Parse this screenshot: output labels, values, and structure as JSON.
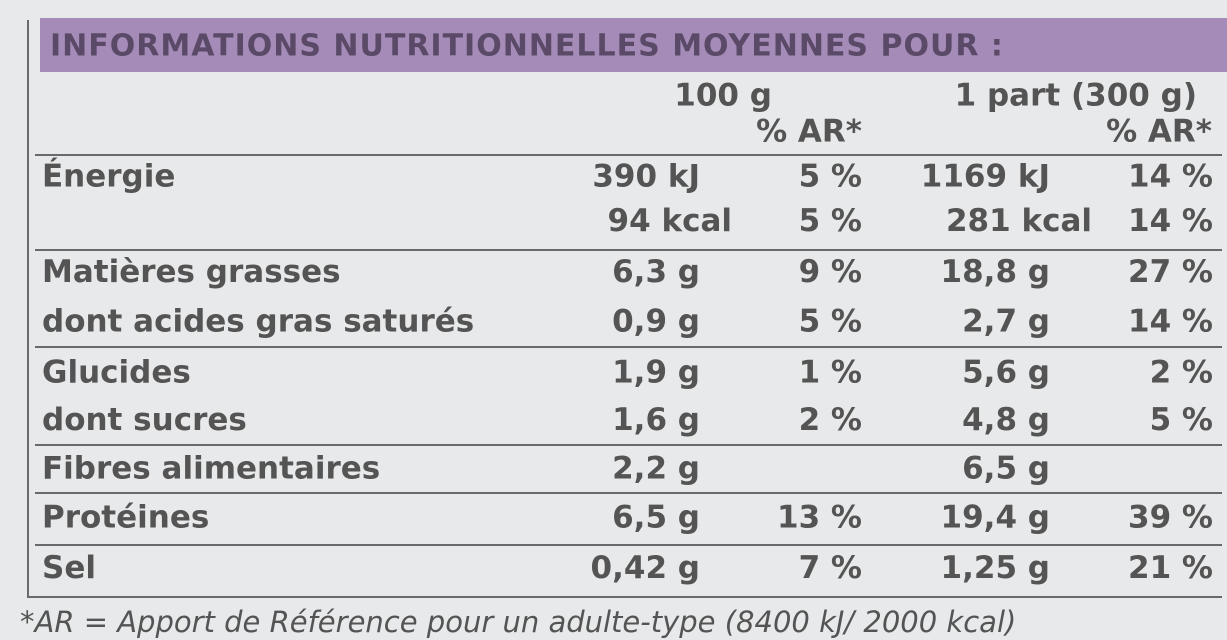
{
  "header": {
    "title": "INFORMATIONS NUTRITIONNELLES MOYENNES POUR :"
  },
  "columns": {
    "per_100g": "100 g",
    "ar_100g": "% AR*",
    "per_part": "1 part (300 g)",
    "ar_part": "% AR*"
  },
  "table": {
    "rows": [
      [
        "Énergie",
        "390 kJ",
        "5 %",
        "1169 kJ",
        "14 %"
      ],
      [
        null,
        "94 kcal",
        "5 %",
        "281 kcal",
        "14 %"
      ],
      [
        "Matières grasses",
        "6,3 g",
        "9 %",
        "18,8 g",
        "27 %"
      ],
      [
        "dont acides gras saturés",
        "0,9 g",
        "5 %",
        "2,7 g",
        "14 %"
      ],
      [
        "Glucides",
        "1,9 g",
        "1 %",
        "5,6 g",
        "2 %"
      ],
      [
        "dont sucres",
        "1,6 g",
        "2 %",
        "4,8 g",
        "5 %"
      ],
      [
        "Fibres alimentaires",
        "2,2 g",
        null,
        "6,5 g",
        null
      ],
      [
        "Protéines",
        "6,5 g",
        "13 %",
        "19,4 g",
        "39 %"
      ],
      [
        "Sel",
        "0,42 g",
        "7 %",
        "1,25 g",
        "21 %"
      ]
    ]
  },
  "footnote": "*AR = Apport de Référence pour un adulte-type (8400 kJ/ 2000 kcal)"
}
